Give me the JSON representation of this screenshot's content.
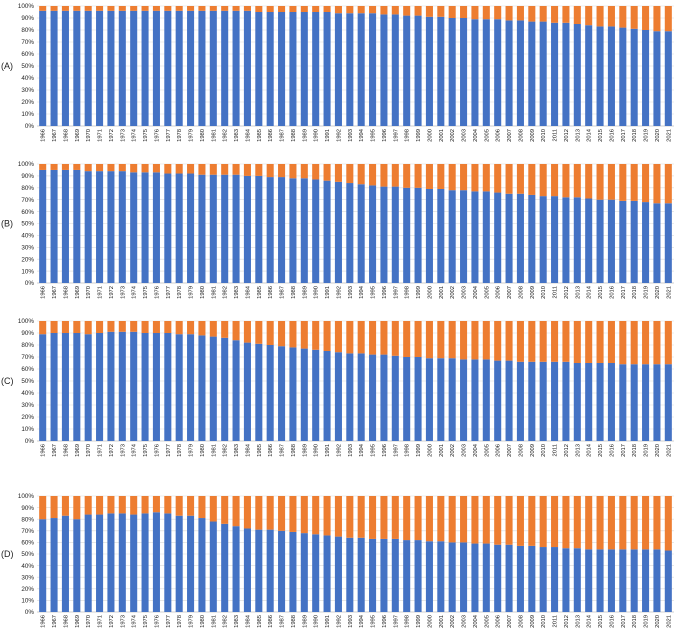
{
  "colors": {
    "series_1": "#4472C4",
    "series_2": "#ED7D31"
  },
  "chart_data": [
    {
      "type": "bar",
      "stacked": true,
      "panel_label": "(A)",
      "years": [
        "1966",
        "1967",
        "1968",
        "1969",
        "1970",
        "1971",
        "1972",
        "1973",
        "1974",
        "1975",
        "1976",
        "1977",
        "1978",
        "1979",
        "1980",
        "1981",
        "1982",
        "1983",
        "1984",
        "1985",
        "1986",
        "1987",
        "1988",
        "1989",
        "1990",
        "1991",
        "1992",
        "1993",
        "1994",
        "1995",
        "1996",
        "1997",
        "1998",
        "1999",
        "2000",
        "2001",
        "2002",
        "2003",
        "2004",
        "2005",
        "2006",
        "2007",
        "2008",
        "2009",
        "2010",
        "2011",
        "2012",
        "2013",
        "2014",
        "2015",
        "2016",
        "2017",
        "2018",
        "2019",
        "2020",
        "2021"
      ],
      "y_ticks": [
        "0%",
        "10%",
        "20%",
        "30%",
        "40%",
        "50%",
        "60%",
        "70%",
        "80%",
        "90%",
        "100%"
      ],
      "ylim": [
        0,
        100
      ],
      "series": [
        {
          "values": [
            96,
            96,
            96,
            96,
            96,
            96,
            96,
            96,
            96,
            96,
            96,
            96,
            96,
            96,
            96,
            96,
            96,
            96,
            96,
            95,
            95,
            95,
            95,
            95,
            95,
            95,
            94,
            94,
            94,
            94,
            93,
            93,
            92,
            92,
            91,
            91,
            90,
            90,
            89,
            89,
            89,
            88,
            88,
            87,
            87,
            86,
            86,
            85,
            84,
            83,
            83,
            82,
            81,
            80,
            79,
            79
          ]
        },
        {
          "values": [
            4,
            4,
            4,
            4,
            4,
            4,
            4,
            4,
            4,
            4,
            4,
            4,
            4,
            4,
            4,
            4,
            4,
            4,
            4,
            5,
            5,
            5,
            5,
            5,
            5,
            5,
            6,
            6,
            6,
            6,
            7,
            7,
            8,
            8,
            9,
            9,
            10,
            10,
            11,
            11,
            11,
            12,
            12,
            13,
            13,
            14,
            14,
            15,
            16,
            17,
            17,
            18,
            19,
            20,
            21,
            21
          ]
        }
      ]
    },
    {
      "type": "bar",
      "stacked": true,
      "panel_label": "(B)",
      "years": [
        "1966",
        "1967",
        "1968",
        "1969",
        "1970",
        "1971",
        "1972",
        "1973",
        "1974",
        "1975",
        "1976",
        "1977",
        "1978",
        "1979",
        "1980",
        "1981",
        "1982",
        "1983",
        "1984",
        "1985",
        "1986",
        "1987",
        "1988",
        "1989",
        "1990",
        "1991",
        "1992",
        "1993",
        "1994",
        "1995",
        "1996",
        "1997",
        "1998",
        "1999",
        "2000",
        "2001",
        "2002",
        "2003",
        "2004",
        "2005",
        "2006",
        "2007",
        "2008",
        "2009",
        "2010",
        "2011",
        "2012",
        "2013",
        "2014",
        "2015",
        "2016",
        "2017",
        "2018",
        "2019",
        "2020",
        "2021"
      ],
      "y_ticks": [
        "0%",
        "10%",
        "20%",
        "30%",
        "40%",
        "50%",
        "60%",
        "70%",
        "80%",
        "90%",
        "100%"
      ],
      "ylim": [
        0,
        100
      ],
      "series": [
        {
          "values": [
            95,
            95,
            95,
            95,
            94,
            94,
            94,
            94,
            93,
            93,
            93,
            92,
            92,
            92,
            91,
            91,
            91,
            91,
            90,
            90,
            89,
            89,
            88,
            88,
            87,
            86,
            85,
            84,
            83,
            82,
            81,
            81,
            80,
            80,
            79,
            79,
            78,
            78,
            77,
            77,
            76,
            75,
            75,
            74,
            73,
            73,
            72,
            72,
            71,
            70,
            70,
            69,
            69,
            68,
            67,
            67
          ]
        },
        {
          "values": [
            5,
            5,
            5,
            5,
            6,
            6,
            6,
            6,
            7,
            7,
            7,
            8,
            8,
            8,
            9,
            9,
            9,
            9,
            10,
            10,
            11,
            11,
            12,
            12,
            13,
            14,
            15,
            16,
            17,
            18,
            19,
            19,
            20,
            20,
            21,
            21,
            22,
            22,
            23,
            23,
            24,
            25,
            25,
            26,
            27,
            27,
            28,
            28,
            29,
            30,
            30,
            31,
            31,
            32,
            33,
            33
          ]
        }
      ]
    },
    {
      "type": "bar",
      "stacked": true,
      "panel_label": "(C)",
      "years": [
        "1966",
        "1967",
        "1968",
        "1969",
        "1970",
        "1971",
        "1972",
        "1973",
        "1974",
        "1975",
        "1976",
        "1977",
        "1978",
        "1979",
        "1980",
        "1981",
        "1982",
        "1983",
        "1984",
        "1985",
        "1986",
        "1987",
        "1988",
        "1989",
        "1990",
        "1991",
        "1992",
        "1993",
        "1994",
        "1995",
        "1996",
        "1997",
        "1998",
        "1999",
        "2000",
        "2001",
        "2002",
        "2003",
        "2004",
        "2005",
        "2006",
        "2007",
        "2008",
        "2009",
        "2010",
        "2011",
        "2012",
        "2013",
        "2014",
        "2015",
        "2016",
        "2017",
        "2018",
        "2019",
        "2020",
        "2021"
      ],
      "y_ticks": [
        "0%",
        "10%",
        "20%",
        "30%",
        "40%",
        "50%",
        "60%",
        "70%",
        "80%",
        "90%",
        "100%"
      ],
      "ylim": [
        0,
        100
      ],
      "series": [
        {
          "values": [
            89,
            90,
            90,
            90,
            89,
            90,
            91,
            91,
            91,
            90,
            90,
            90,
            89,
            89,
            88,
            87,
            86,
            84,
            82,
            81,
            80,
            79,
            78,
            77,
            76,
            75,
            74,
            73,
            73,
            72,
            72,
            71,
            70,
            70,
            69,
            69,
            69,
            68,
            68,
            68,
            67,
            67,
            66,
            66,
            66,
            66,
            66,
            65,
            65,
            65,
            65,
            64,
            64,
            64,
            64,
            64
          ]
        },
        {
          "values": [
            11,
            10,
            10,
            10,
            11,
            10,
            9,
            9,
            9,
            10,
            10,
            10,
            11,
            11,
            12,
            13,
            14,
            16,
            18,
            19,
            20,
            21,
            22,
            23,
            24,
            25,
            26,
            27,
            27,
            28,
            28,
            29,
            30,
            30,
            31,
            31,
            31,
            32,
            32,
            32,
            33,
            33,
            34,
            34,
            34,
            34,
            34,
            35,
            35,
            35,
            35,
            36,
            36,
            36,
            36,
            36
          ]
        }
      ]
    },
    {
      "type": "bar",
      "stacked": true,
      "panel_label": "(D)",
      "years": [
        "1966",
        "1967",
        "1968",
        "1969",
        "1970",
        "1971",
        "1972",
        "1973",
        "1974",
        "1975",
        "1976",
        "1977",
        "1978",
        "1979",
        "1980",
        "1981",
        "1982",
        "1983",
        "1984",
        "1985",
        "1986",
        "1987",
        "1988",
        "1989",
        "1990",
        "1991",
        "1992",
        "1993",
        "1994",
        "1995",
        "1996",
        "1997",
        "1998",
        "1999",
        "2000",
        "2001",
        "2002",
        "2003",
        "2004",
        "2005",
        "2006",
        "2007",
        "2008",
        "2009",
        "2010",
        "2011",
        "2012",
        "2013",
        "2014",
        "2015",
        "2016",
        "2017",
        "2018",
        "2019",
        "2020",
        "2021"
      ],
      "y_ticks": [
        "0%",
        "10%",
        "20%",
        "30%",
        "40%",
        "50%",
        "60%",
        "70%",
        "80%",
        "90%",
        "100%"
      ],
      "ylim": [
        0,
        100
      ],
      "series": [
        {
          "values": [
            80,
            81,
            83,
            80,
            84,
            84,
            85,
            85,
            84,
            85,
            86,
            85,
            83,
            83,
            81,
            78,
            76,
            74,
            72,
            71,
            71,
            70,
            69,
            68,
            67,
            66,
            65,
            64,
            64,
            63,
            63,
            63,
            62,
            62,
            61,
            61,
            60,
            60,
            59,
            59,
            58,
            58,
            57,
            57,
            56,
            56,
            55,
            55,
            54,
            54,
            54,
            54,
            54,
            54,
            54,
            53
          ]
        },
        {
          "values": [
            20,
            19,
            17,
            20,
            16,
            16,
            15,
            15,
            16,
            15,
            14,
            15,
            17,
            17,
            19,
            22,
            24,
            26,
            28,
            29,
            29,
            30,
            31,
            32,
            33,
            34,
            35,
            36,
            36,
            37,
            37,
            37,
            38,
            38,
            39,
            39,
            40,
            40,
            41,
            41,
            42,
            42,
            43,
            43,
            44,
            44,
            45,
            45,
            46,
            46,
            46,
            46,
            46,
            46,
            46,
            47
          ]
        }
      ]
    }
  ]
}
